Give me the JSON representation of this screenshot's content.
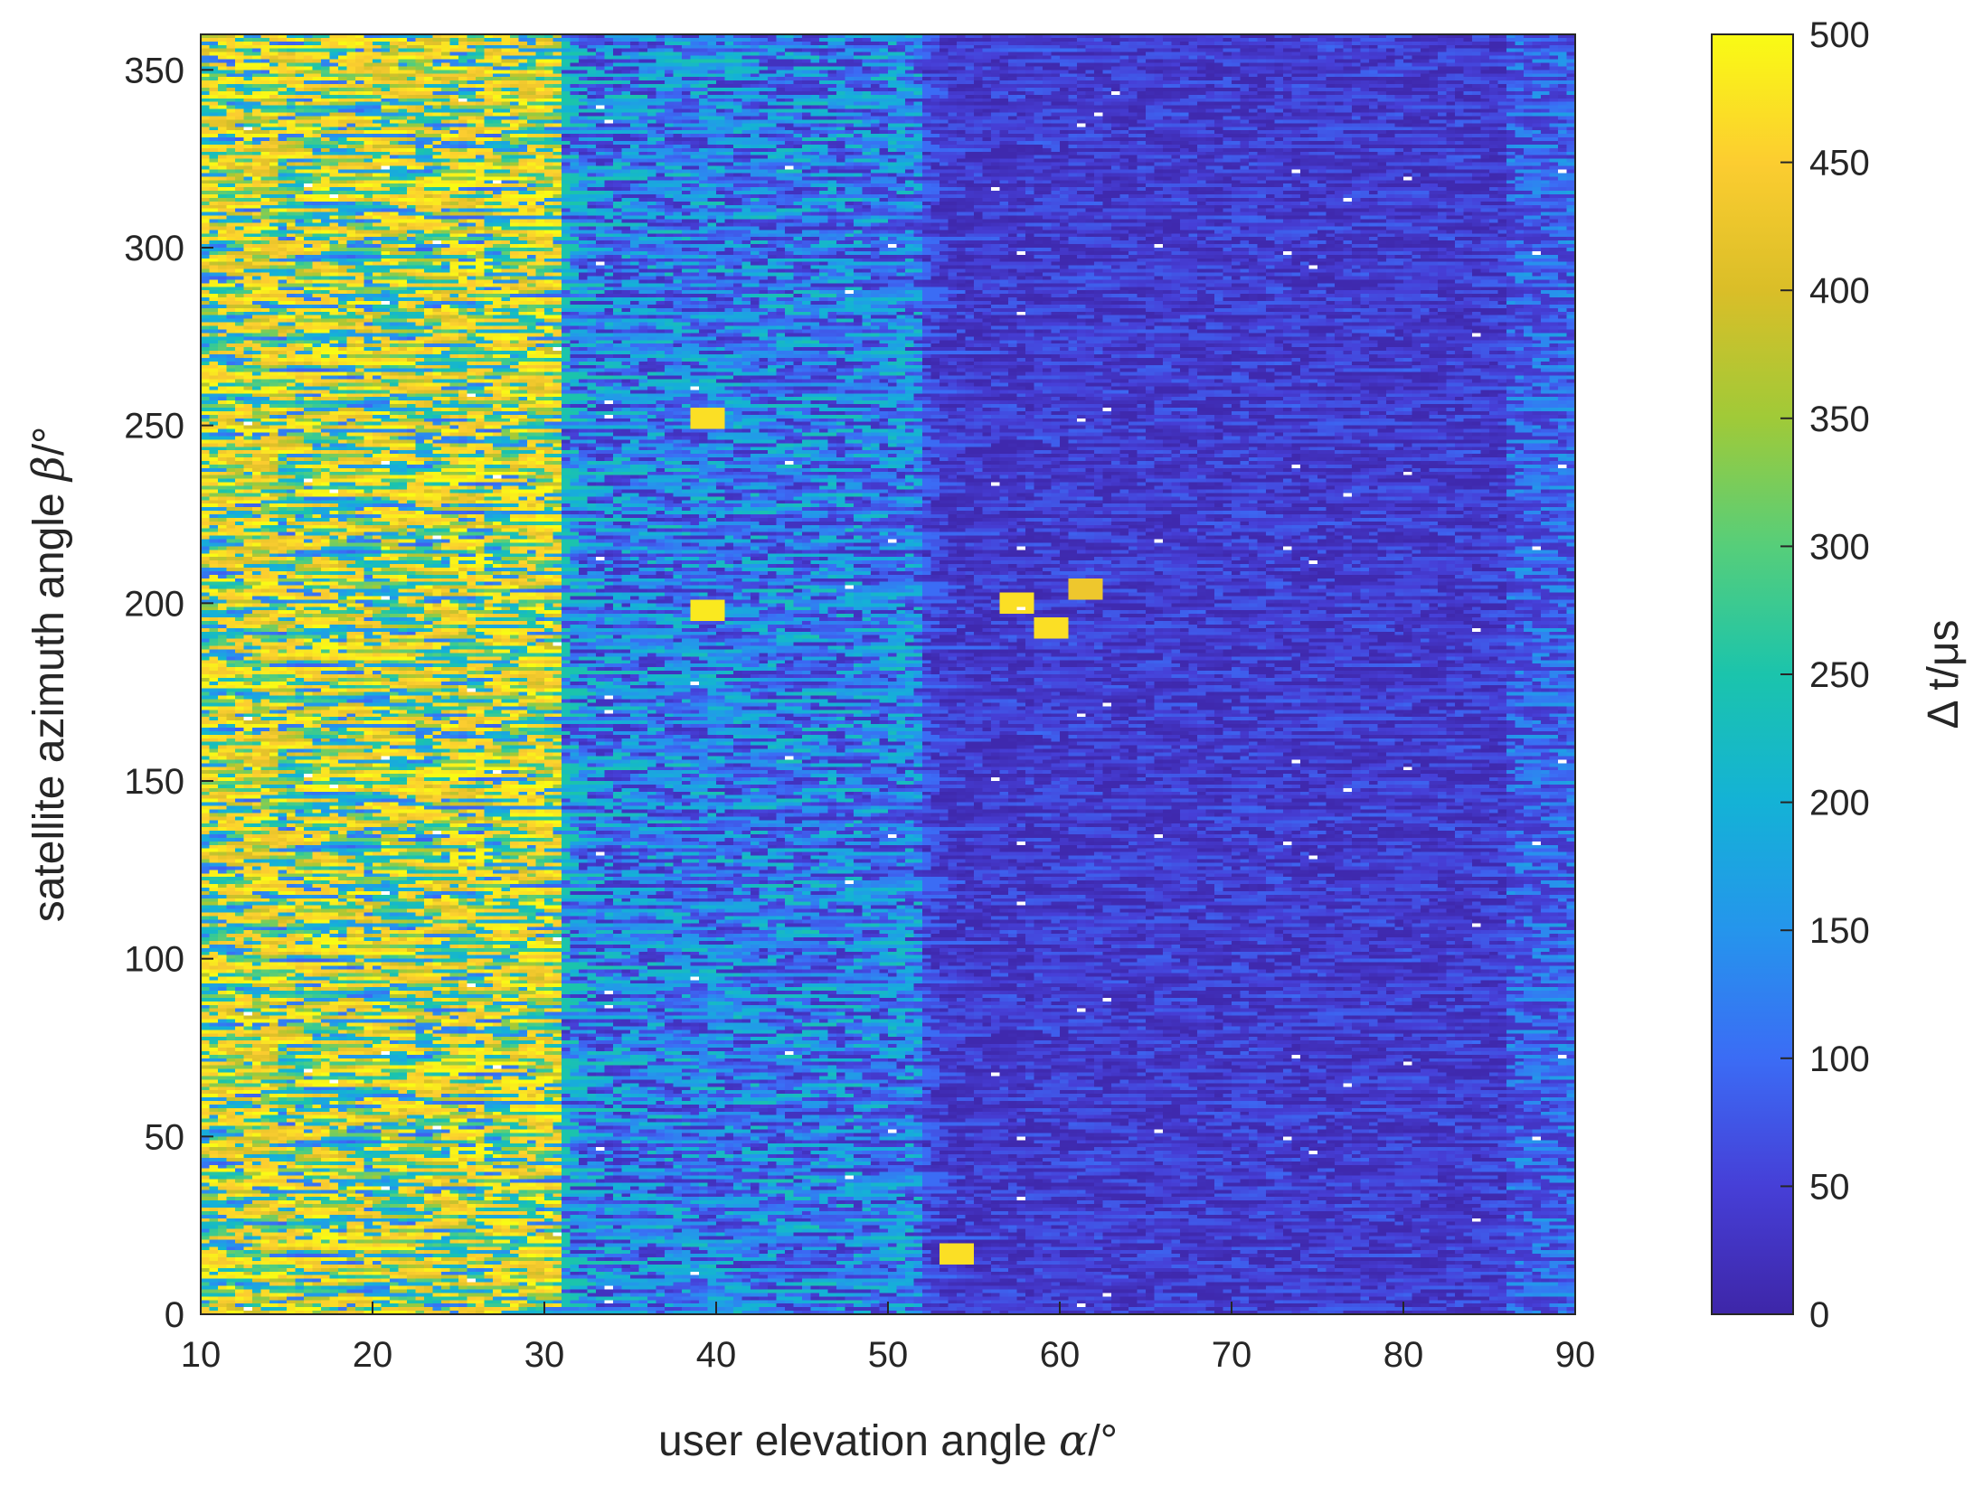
{
  "chart_data": {
    "type": "heatmap",
    "xlabel": {
      "prefix": "user elevation angle ",
      "symbol": "α",
      "suffix": "/°"
    },
    "ylabel": {
      "prefix": "satellite azimuth angle ",
      "symbol": "β",
      "suffix": "/°"
    },
    "colorbar_label": "Δ t/μs",
    "xlim": [
      10,
      90
    ],
    "ylim": [
      0,
      360
    ],
    "clim": [
      0,
      500
    ],
    "colormap": "parula",
    "x_ticks": [
      "10",
      "20",
      "30",
      "40",
      "50",
      "60",
      "70",
      "80",
      "90"
    ],
    "y_ticks": [
      "0",
      "50",
      "100",
      "150",
      "200",
      "250",
      "300",
      "350"
    ],
    "colorbar_ticks": [
      "0",
      "50",
      "100",
      "150",
      "200",
      "250",
      "300",
      "350",
      "400",
      "450",
      "500"
    ],
    "grid": false,
    "regions": [
      {
        "x_range": [
          10,
          31
        ],
        "typical_dt": 300,
        "description_value_range": [
          150,
          500
        ]
      },
      {
        "x_range": [
          31,
          52
        ],
        "typical_dt": 120,
        "description_value_range": [
          40,
          250
        ]
      },
      {
        "x_range": [
          52,
          86
        ],
        "typical_dt": 40,
        "description_value_range": [
          10,
          100
        ]
      },
      {
        "x_range": [
          86,
          90
        ],
        "typical_dt": 90,
        "description_value_range": [
          50,
          180
        ]
      }
    ],
    "hotspots": [
      {
        "x": 39.5,
        "y": 198,
        "dt": 480
      },
      {
        "x": 57.5,
        "y": 200,
        "dt": 470
      },
      {
        "x": 59.5,
        "y": 193,
        "dt": 470
      },
      {
        "x": 61.5,
        "y": 204,
        "dt": 430
      },
      {
        "x": 39.5,
        "y": 252,
        "dt": 470
      },
      {
        "x": 54,
        "y": 17,
        "dt": 470
      }
    ]
  }
}
